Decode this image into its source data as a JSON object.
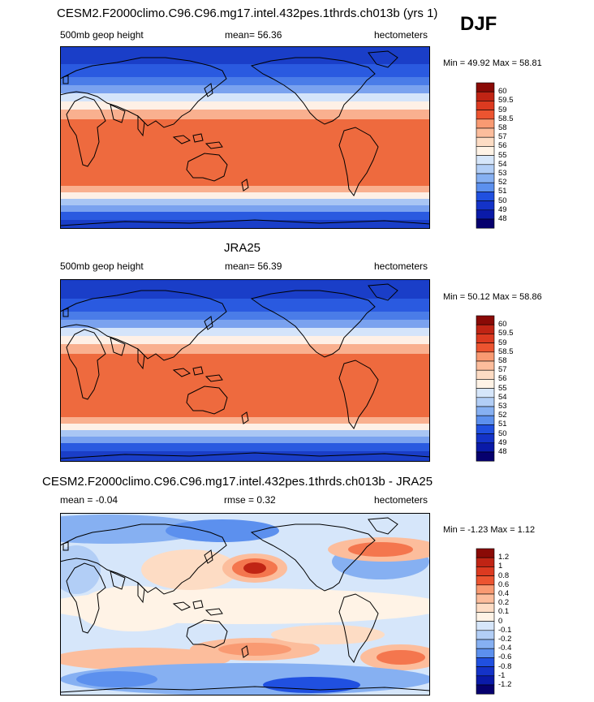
{
  "figure": {
    "season": "DJF",
    "scale_red": [
      "#06006e",
      "#0a1aa8",
      "#1433c8",
      "#2050e0",
      "#3a70e8",
      "#5c90ee",
      "#86b0f2",
      "#b2cef6",
      "#d6e6fa",
      "#fff3e6",
      "#fddcc4",
      "#fcbd9c",
      "#f99a72",
      "#f4764e",
      "#ec5430",
      "#dc3a20",
      "#c02414",
      "#8a0a06"
    ],
    "map_colors": [
      "#1a3ec8",
      "#2a5ae0",
      "#4a7ce8",
      "#7aa2ef",
      "#a9c6f4",
      "#d4e4fa",
      "#fef0e6",
      "#fcd4bf",
      "#f9b08f",
      "#f48a62",
      "#ee6a3e",
      "#e6512a"
    ],
    "land_color": "#000000"
  },
  "chart_data": [
    {
      "type": "heatmap",
      "title": "CESM2.F2000climo.C96.C96.mg17.intel.432pes.1thrds.ch013b (yrs 1)",
      "left_label": "500mb geop height",
      "center_label": "mean=  56.36",
      "right_label": "hectometers",
      "min_max": "Min =  49.92 Max =  58.81",
      "min": 49.92,
      "max": 58.81,
      "mean": 56.36,
      "colorbar_levels": [
        "60",
        "59.5",
        "59",
        "58.5",
        "58",
        "57",
        "56",
        "55",
        "54",
        "53",
        "52",
        "51",
        "50",
        "49",
        "48"
      ],
      "field": "zonal band pattern: low heights at high latitudes (~50), high heights in tropics (~58.5)"
    },
    {
      "type": "heatmap",
      "title": "JRA25",
      "left_label": "500mb geop height",
      "center_label": "mean=  56.39",
      "right_label": "hectometers",
      "min_max": "Min =  50.12 Max =  58.86",
      "min": 50.12,
      "max": 58.86,
      "mean": 56.39,
      "colorbar_levels": [
        "60",
        "59.5",
        "59",
        "58.5",
        "58",
        "57",
        "56",
        "55",
        "54",
        "53",
        "52",
        "51",
        "50",
        "49",
        "48"
      ],
      "field": "zonal band pattern: low heights at high latitudes (~50), high heights in tropics (~58.5)"
    },
    {
      "type": "heatmap",
      "title": "CESM2.F2000climo.C96.C96.mg17.intel.432pes.1thrds.ch013b - JRA25",
      "left_label": "mean =  -0.04",
      "center_label": "rmse =   0.32",
      "right_label": "hectometers",
      "min_max": "Min =  -1.23 Max =   1.12",
      "min": -1.23,
      "max": 1.12,
      "mean": -0.04,
      "rmse": 0.32,
      "colorbar_levels": [
        "1.2",
        "1",
        "0.8",
        "0.6",
        "0.4",
        "0.2",
        "0.1",
        "0",
        "-0.1",
        "-0.2",
        "-0.4",
        "-0.6",
        "-0.8",
        "-1",
        "-1.2"
      ],
      "field": "difference map: positive anomalies over North Pacific, North Atlantic and Southern Ocean bands; negative anomalies at high latitudes"
    }
  ]
}
